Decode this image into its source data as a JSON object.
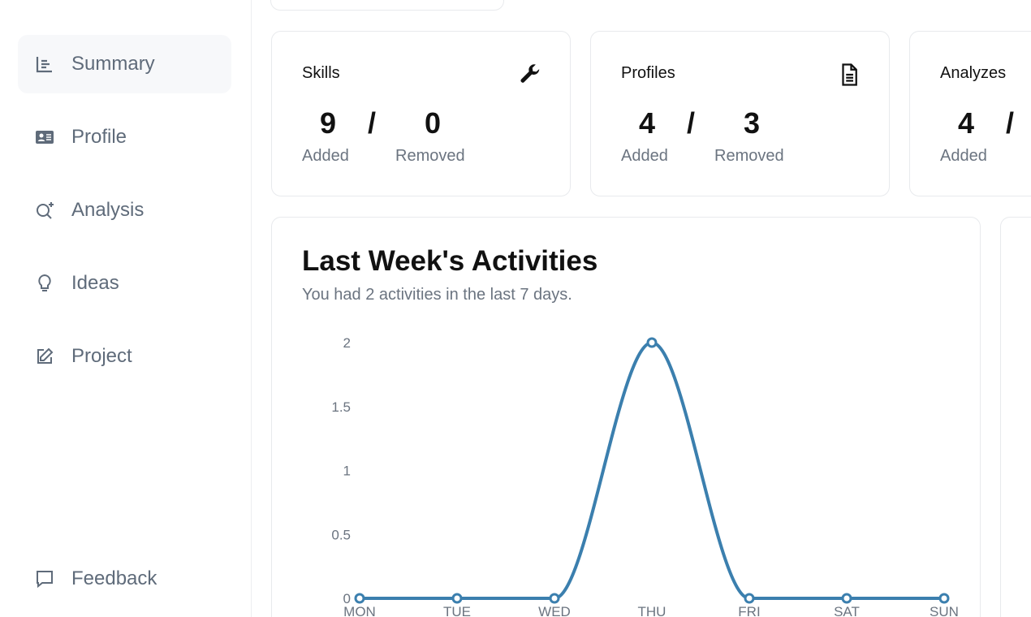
{
  "sidebar": {
    "items": [
      {
        "label": "Summary",
        "icon": "chart-icon",
        "active": true
      },
      {
        "label": "Profile",
        "icon": "id-card-icon"
      },
      {
        "label": "Analysis",
        "icon": "search-sparkle-icon"
      },
      {
        "label": "Ideas",
        "icon": "lightbulb-icon"
      },
      {
        "label": "Project",
        "icon": "edit-icon"
      }
    ],
    "feedback": {
      "label": "Feedback",
      "icon": "message-icon"
    }
  },
  "stats": [
    {
      "title": "Skills",
      "icon": "wrench-icon",
      "added": "9",
      "removed": "0",
      "added_label": "Added",
      "removed_label": "Removed",
      "slash": "/"
    },
    {
      "title": "Profiles",
      "icon": "document-icon",
      "added": "4",
      "removed": "3",
      "added_label": "Added",
      "removed_label": "Removed",
      "slash": "/"
    },
    {
      "title": "Analyzes",
      "icon": "",
      "added": "4",
      "added_label": "Added",
      "slash": "/"
    }
  ],
  "activity": {
    "title": "Last Week's Activities",
    "subtitle": "You had 2 activities in the last 7 days."
  },
  "chart_data": {
    "type": "line",
    "categories": [
      "MON",
      "TUE",
      "WED",
      "THU",
      "FRI",
      "SAT",
      "SUN"
    ],
    "values": [
      0,
      0,
      0,
      2,
      0,
      0,
      0
    ],
    "yticks": [
      "0",
      "0.5",
      "1",
      "1.5",
      "2"
    ],
    "ylim": [
      0,
      2
    ],
    "color": "#3b7fae",
    "title": "Last Week's Activities"
  }
}
